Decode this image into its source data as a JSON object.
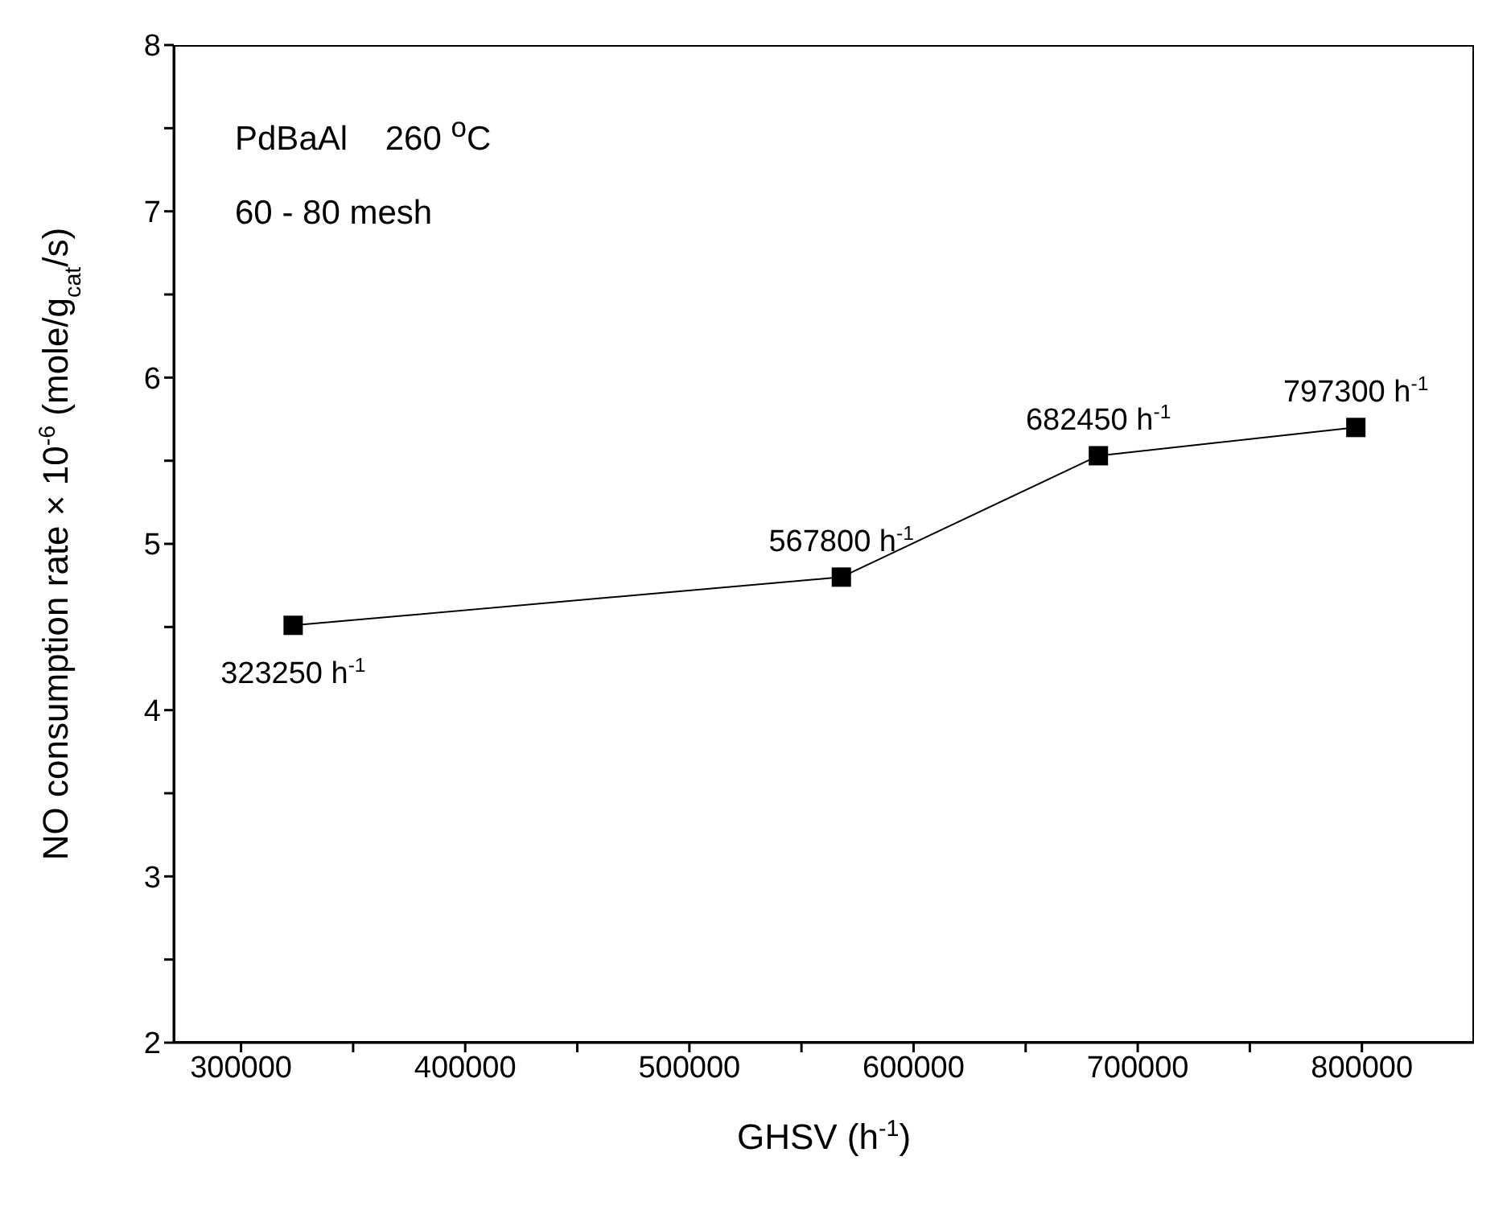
{
  "chart_data": {
    "type": "line",
    "xlabel": "GHSV (h$^{-1}$)",
    "ylabel": "NO consumption rate × 10$^{-6}$ (mole/g$_{cat}$/s)",
    "x": [
      323250,
      567800,
      682450,
      797300
    ],
    "series": [
      {
        "color": "#000000",
        "values": [
          4.51,
          4.8,
          5.53,
          5.7
        ]
      }
    ],
    "xlim": [
      270000,
      850000
    ],
    "xticks": [
      300000,
      {
        "value": 350000,
        "label": null
      },
      400000,
      {
        "value": 450000,
        "label": null
      },
      500000,
      {
        "value": 550000,
        "label": null
      },
      600000,
      {
        "value": 650000,
        "label": null
      },
      700000,
      {
        "value": 750000,
        "label": null
      },
      800000
    ],
    "ylim": [
      2,
      8
    ],
    "yticks": [
      2,
      {
        "value": 2.5,
        "label": null
      },
      3,
      {
        "value": 3.5,
        "label": null
      },
      4,
      {
        "value": 4.5,
        "label": null
      },
      5,
      {
        "value": 5.5,
        "label": null
      },
      6,
      {
        "value": 6.5,
        "label": null
      },
      7,
      {
        "value": 7.5,
        "label": null
      },
      8
    ],
    "marker": "square",
    "line_style": "solid",
    "grid": false,
    "legend": false,
    "annotations": [
      "PdBaAl    260 $^{o}$C",
      "60 - 80 mesh",
      {
        "text": "323250 h$^{-1}$",
        "x": 323250,
        "y": 4.51
      },
      {
        "text": "567800 h$^{-1}$",
        "x": 567800,
        "y": 4.8
      },
      {
        "text": "682450 h$^{-1}$",
        "x": 682450,
        "y": 5.53
      },
      {
        "text": "797300 h$^{-1}$",
        "x": 797300,
        "y": 5.7
      }
    ]
  }
}
